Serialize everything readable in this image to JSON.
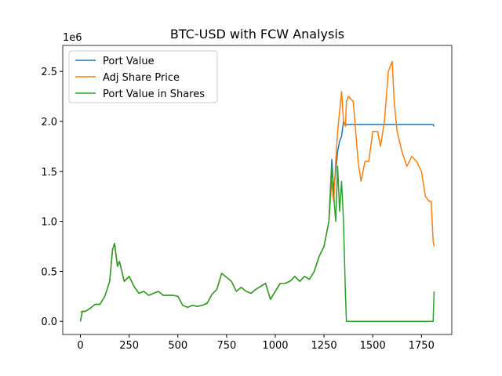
{
  "chart_data": {
    "type": "line",
    "title": "BTC-USD with FCW Analysis",
    "y_offset_label": "1e6",
    "x": [
      0,
      10,
      25,
      50,
      75,
      100,
      125,
      150,
      165,
      175,
      190,
      200,
      225,
      250,
      275,
      300,
      325,
      350,
      375,
      400,
      425,
      450,
      475,
      500,
      525,
      550,
      575,
      600,
      625,
      650,
      675,
      700,
      725,
      750,
      775,
      800,
      825,
      850,
      875,
      900,
      925,
      950,
      975,
      1000,
      1025,
      1050,
      1075,
      1100,
      1125,
      1150,
      1175,
      1200,
      1225,
      1250,
      1275,
      1290,
      1300,
      1310,
      1320,
      1330,
      1340,
      1350,
      1360,
      1365,
      1375,
      1400,
      1425,
      1440,
      1460,
      1480,
      1500,
      1525,
      1540,
      1560,
      1580,
      1600,
      1610,
      1625,
      1650,
      1675,
      1700,
      1725,
      1750,
      1770,
      1790,
      1800,
      1810,
      1815
    ],
    "series": [
      {
        "name": "Port Value",
        "color": "#1f77b4",
        "values": [
          0.0,
          0.1,
          0.1,
          0.13,
          0.17,
          0.17,
          0.25,
          0.4,
          0.72,
          0.78,
          0.55,
          0.6,
          0.4,
          0.45,
          0.35,
          0.28,
          0.3,
          0.26,
          0.28,
          0.3,
          0.26,
          0.26,
          0.26,
          0.25,
          0.16,
          0.14,
          0.16,
          0.15,
          0.16,
          0.18,
          0.27,
          0.32,
          0.48,
          0.44,
          0.4,
          0.3,
          0.34,
          0.3,
          0.28,
          0.32,
          0.35,
          0.38,
          0.22,
          0.3,
          0.38,
          0.38,
          0.4,
          0.45,
          0.4,
          0.45,
          0.42,
          0.5,
          0.65,
          0.75,
          1.0,
          1.62,
          1.3,
          1.5,
          1.7,
          1.8,
          1.85,
          2.0,
          1.97,
          1.97,
          1.97,
          1.97,
          1.97,
          1.97,
          1.97,
          1.97,
          1.97,
          1.97,
          1.97,
          1.97,
          1.97,
          1.97,
          1.97,
          1.97,
          1.97,
          1.97,
          1.97,
          1.97,
          1.97,
          1.97,
          1.97,
          1.97,
          1.97,
          1.95
        ]
      },
      {
        "name": "Adj Share Price",
        "color": "#ff7f0e",
        "values": [
          0.09,
          0.1,
          0.1,
          0.13,
          0.17,
          0.17,
          0.25,
          0.4,
          0.72,
          0.78,
          0.55,
          0.6,
          0.4,
          0.45,
          0.35,
          0.28,
          0.3,
          0.26,
          0.28,
          0.3,
          0.26,
          0.26,
          0.26,
          0.25,
          0.16,
          0.14,
          0.16,
          0.15,
          0.16,
          0.18,
          0.27,
          0.32,
          0.48,
          0.44,
          0.4,
          0.3,
          0.34,
          0.3,
          0.28,
          0.32,
          0.35,
          0.38,
          0.22,
          0.3,
          0.38,
          0.38,
          0.4,
          0.45,
          0.4,
          0.45,
          0.42,
          0.5,
          0.65,
          0.75,
          1.0,
          1.4,
          1.2,
          1.6,
          1.9,
          2.1,
          2.3,
          2.0,
          1.95,
          2.2,
          2.25,
          2.2,
          1.6,
          1.4,
          1.6,
          1.6,
          1.9,
          1.9,
          1.75,
          2.0,
          2.5,
          2.6,
          2.2,
          1.9,
          1.7,
          1.55,
          1.65,
          1.6,
          1.5,
          1.25,
          1.2,
          1.2,
          0.8,
          0.75
        ]
      },
      {
        "name": "Port Value in Shares",
        "color": "#2ca02c",
        "values": [
          0.0,
          0.1,
          0.1,
          0.13,
          0.17,
          0.17,
          0.25,
          0.4,
          0.72,
          0.78,
          0.55,
          0.6,
          0.4,
          0.45,
          0.35,
          0.28,
          0.3,
          0.26,
          0.28,
          0.3,
          0.26,
          0.26,
          0.26,
          0.25,
          0.16,
          0.14,
          0.16,
          0.15,
          0.16,
          0.18,
          0.27,
          0.32,
          0.48,
          0.44,
          0.4,
          0.3,
          0.34,
          0.3,
          0.28,
          0.32,
          0.35,
          0.38,
          0.22,
          0.3,
          0.38,
          0.38,
          0.4,
          0.45,
          0.4,
          0.45,
          0.42,
          0.5,
          0.65,
          0.75,
          1.0,
          1.55,
          1.25,
          1.0,
          1.55,
          1.1,
          1.4,
          1.0,
          0.27,
          0.0,
          0.0,
          0.0,
          0.0,
          0.0,
          0.0,
          0.0,
          0.0,
          0.0,
          0.0,
          0.0,
          0.0,
          0.0,
          0.0,
          0.0,
          0.0,
          0.0,
          0.0,
          0.0,
          0.0,
          0.0,
          0.0,
          0.0,
          0.0,
          0.3
        ]
      }
    ],
    "xlim": [
      -90.75,
      1905.75
    ],
    "xticks": [
      0,
      250,
      500,
      750,
      1000,
      1250,
      1500,
      1750
    ],
    "ylim": [
      -0.1315,
      2.76
    ],
    "yticks": [
      {
        "value": 0,
        "label": "0.0"
      },
      {
        "value": 0.5,
        "label": "0.5"
      },
      {
        "value": 1,
        "label": "1.0"
      },
      {
        "value": 1.5,
        "label": "1.5"
      },
      {
        "value": 2,
        "label": "2.0"
      },
      {
        "value": 2.5,
        "label": "2.5"
      }
    ],
    "legend": "upper left",
    "grid": false
  }
}
